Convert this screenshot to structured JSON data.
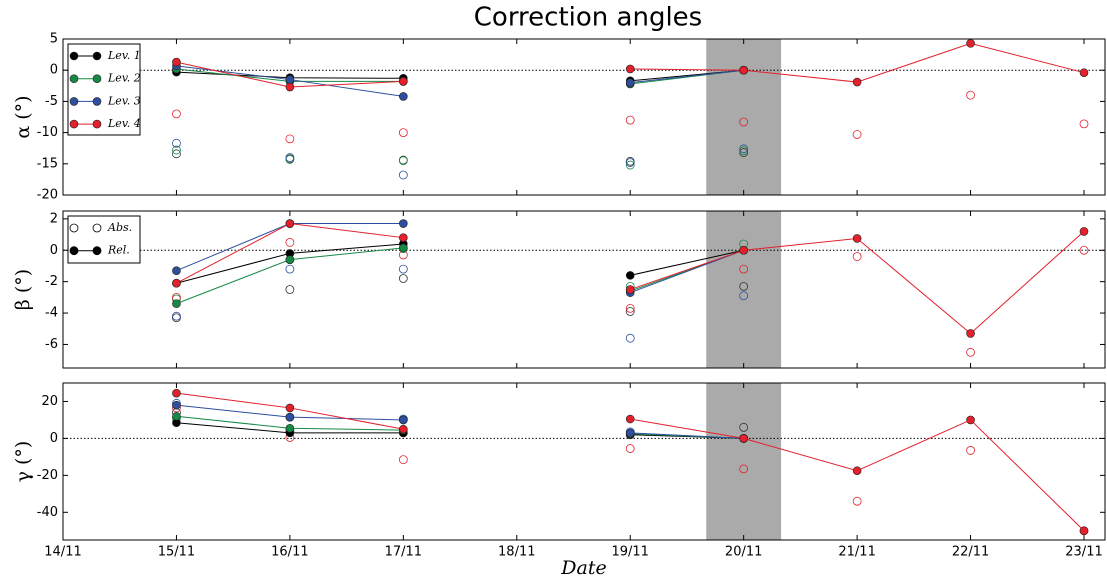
{
  "chart_data": [
    {
      "type": "line",
      "title": "Correction angles",
      "ylabel": "α (°)",
      "x": [
        "15/11",
        "16/11",
        "17/11",
        "18/11",
        "19/11",
        "20/11",
        "21/11",
        "22/11",
        "23/11"
      ],
      "xlim": [
        "14/11",
        "23/11"
      ],
      "highlight": "20/11",
      "highlight_color": "#aaaaaa",
      "zero_line": true,
      "ylim": [
        -20,
        5
      ],
      "yticks": [
        -20,
        -15,
        -10,
        -5,
        0,
        5
      ],
      "legend": "upper left",
      "series": [
        {
          "name": "Lev. 1",
          "color": "#000000",
          "values": [
            -0.3,
            -1.2,
            -1.3,
            null,
            -1.7,
            0,
            null,
            null,
            null
          ],
          "abs_values": [
            -13.4,
            -14.2,
            -14.4,
            null,
            -14.6,
            -13.2,
            null,
            null,
            null
          ]
        },
        {
          "name": "Lev. 2",
          "color": "#168a45",
          "values": [
            0.2,
            -1.8,
            -1.8,
            null,
            -2.2,
            0,
            null,
            null,
            null
          ],
          "abs_values": [
            -12.8,
            -14.3,
            -14.5,
            null,
            -15.2,
            -12.9,
            null,
            null,
            null
          ]
        },
        {
          "name": "Lev. 3",
          "color": "#2e4f9e",
          "values": [
            0.7,
            -1.5,
            -4.2,
            null,
            -2.0,
            0,
            null,
            null,
            null
          ],
          "abs_values": [
            -11.7,
            -14.0,
            -16.8,
            null,
            -14.8,
            -12.6,
            null,
            null,
            null
          ]
        },
        {
          "name": "Lev. 4",
          "color": "#e3202b",
          "values": [
            1.3,
            -2.7,
            -1.8,
            null,
            0.2,
            0,
            -1.9,
            4.3,
            -0.4
          ],
          "abs_values": [
            -7.0,
            -11.0,
            -10.0,
            null,
            -8.0,
            -8.3,
            -10.3,
            -4.0,
            -8.6
          ]
        }
      ]
    },
    {
      "type": "line",
      "ylabel": "β (°)",
      "x": [
        "15/11",
        "16/11",
        "17/11",
        "18/11",
        "19/11",
        "20/11",
        "21/11",
        "22/11",
        "23/11"
      ],
      "xlim": [
        "14/11",
        "23/11"
      ],
      "highlight": "20/11",
      "highlight_color": "#aaaaaa",
      "zero_line": true,
      "ylim": [
        -7.5,
        2.5
      ],
      "yticks": [
        -6,
        -4,
        -2,
        0,
        2
      ],
      "legend": "upper left",
      "legend_labels": [
        "Abs.",
        "Rel."
      ],
      "series": [
        {
          "color": "#000000",
          "values": [
            -2.1,
            -0.2,
            0.4,
            null,
            -1.6,
            0,
            null,
            null,
            null
          ],
          "abs_values": [
            -4.3,
            -2.5,
            -1.8,
            null,
            -3.9,
            -2.3,
            null,
            null,
            null
          ]
        },
        {
          "color": "#168a45",
          "values": [
            -3.4,
            -0.6,
            0.15,
            null,
            -2.6,
            0,
            null,
            null,
            null
          ],
          "abs_values": [
            -3.1,
            -0.6,
            0.1,
            null,
            -2.3,
            0.4,
            null,
            null,
            null
          ]
        },
        {
          "color": "#2e4f9e",
          "values": [
            -1.3,
            1.7,
            1.7,
            null,
            -2.7,
            0,
            null,
            null,
            null
          ],
          "abs_values": [
            -4.2,
            -1.2,
            -1.2,
            null,
            -5.6,
            -2.9,
            null,
            null,
            null
          ]
        },
        {
          "color": "#e3202b",
          "values": [
            -2.1,
            1.7,
            0.8,
            null,
            -2.5,
            0,
            0.75,
            -5.3,
            1.2
          ],
          "abs_values": [
            -3.0,
            0.5,
            -0.3,
            null,
            -3.7,
            -1.2,
            -0.4,
            -6.5,
            0.0
          ]
        }
      ]
    },
    {
      "type": "line",
      "ylabel": "γ (°)",
      "xlabel": "Date",
      "x": [
        "15/11",
        "16/11",
        "17/11",
        "18/11",
        "19/11",
        "20/11",
        "21/11",
        "22/11",
        "23/11"
      ],
      "xlim": [
        "14/11",
        "23/11"
      ],
      "highlight": "20/11",
      "highlight_color": "#aaaaaa",
      "zero_line": true,
      "xticks": [
        "14/11",
        "15/11",
        "16/11",
        "17/11",
        "18/11",
        "19/11",
        "20/11",
        "21/11",
        "22/11",
        "23/11"
      ],
      "ylim": [
        -55,
        30
      ],
      "yticks": [
        -40,
        -20,
        0,
        20
      ],
      "series": [
        {
          "color": "#000000",
          "values": [
            8.5,
            3,
            3,
            null,
            2,
            0,
            null,
            null,
            null
          ],
          "abs_values": [
            14,
            3.5,
            3,
            null,
            2,
            6,
            null,
            null,
            null
          ]
        },
        {
          "color": "#168a45",
          "values": [
            12,
            5.5,
            4.5,
            null,
            2.5,
            0,
            null,
            null,
            null
          ],
          "abs_values": [
            11,
            5,
            10,
            null,
            2.5,
            0,
            null,
            null,
            null
          ]
        },
        {
          "color": "#2e4f9e",
          "values": [
            18,
            11.5,
            10,
            null,
            3,
            0,
            null,
            null,
            null
          ],
          "abs_values": [
            19,
            11.5,
            10.5,
            null,
            3.5,
            0,
            null,
            null,
            null
          ]
        },
        {
          "color": "#e3202b",
          "values": [
            24.5,
            16.5,
            5,
            null,
            10.5,
            0,
            -17.5,
            10,
            -50
          ],
          "abs_values": [
            16.5,
            0.5,
            -11.5,
            null,
            -5.5,
            -16.5,
            -34,
            -6.5,
            -50
          ]
        }
      ]
    }
  ]
}
